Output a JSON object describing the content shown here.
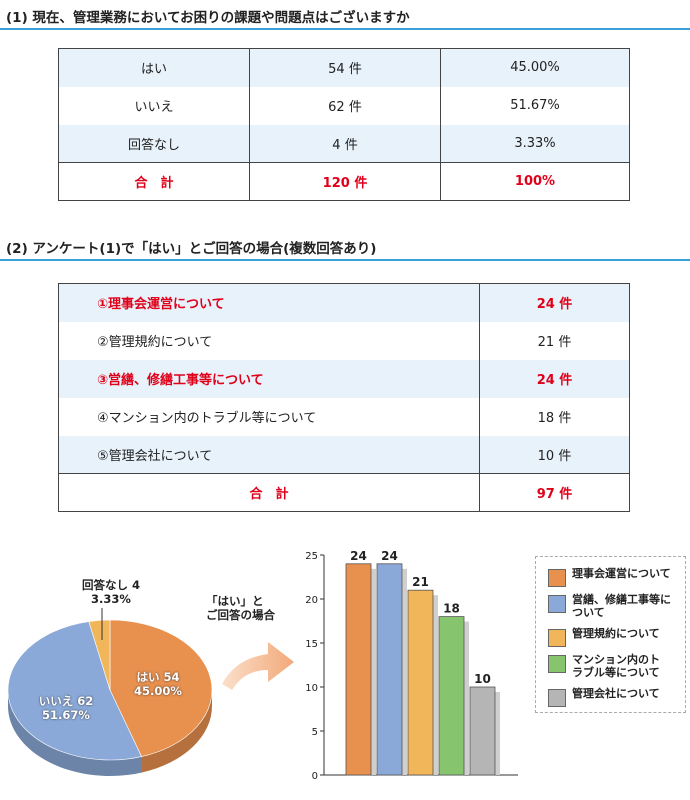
{
  "section1": {
    "title": "(1) 現在、管理業務においてお困りの課題や問題点はございますか",
    "rows": [
      {
        "label": "はい",
        "count": "54 件",
        "pct": "45.00%"
      },
      {
        "label": "いいえ",
        "count": "62 件",
        "pct": "51.67%"
      },
      {
        "label": "回答なし",
        "count": "4 件",
        "pct": "3.33%"
      }
    ],
    "total": {
      "label": "合　計",
      "count": "120 件",
      "pct": "100%"
    }
  },
  "section2": {
    "title": "(2) アンケート(1)で「はい」とご回答の場合(複数回答あり)",
    "rows": [
      {
        "label": "①理事会運営について",
        "count": "24 件",
        "highlight": true
      },
      {
        "label": "②管理規約について",
        "count": "21 件",
        "highlight": false
      },
      {
        "label": "③営繕、修繕工事等について",
        "count": "24 件",
        "highlight": true
      },
      {
        "label": "④マンション内のトラブル等について",
        "count": "18 件",
        "highlight": false
      },
      {
        "label": "⑤管理会社について",
        "count": "10 件",
        "highlight": false
      }
    ],
    "total": {
      "label": "合　計",
      "count": "97 件"
    }
  },
  "arrow_label": [
    "「はい」と",
    "ご回答の場合"
  ],
  "chart_data": [
    {
      "type": "pie",
      "slices": [
        {
          "name": "はい",
          "value": 54,
          "pct": "45.00%",
          "label1": "はい 54",
          "label2": "45.00%",
          "color": "#e8904e"
        },
        {
          "name": "いいえ",
          "value": 62,
          "pct": "51.67%",
          "label1": "いいえ 62",
          "label2": "51.67%",
          "color": "#8aa9d8"
        },
        {
          "name": "回答なし",
          "value": 4,
          "pct": "3.33%",
          "label1": "回答なし 4",
          "label2": "3.33%",
          "color": "#f2b65a"
        }
      ]
    },
    {
      "type": "bar",
      "categories": [
        "理事会運営について",
        "営繕、修繕工事等について",
        "管理規約について",
        "マンション内のトラブル等について",
        "管理会社について"
      ],
      "values": [
        24,
        24,
        21,
        18,
        10
      ],
      "colors": [
        "#e8904e",
        "#8aa9d8",
        "#f2b65a",
        "#86c46e",
        "#b5b5b5"
      ],
      "ylim": [
        0,
        25
      ],
      "yticks": [
        0,
        5,
        10,
        15,
        20,
        25
      ],
      "legend": [
        {
          "text": "理事会運営について",
          "color": "#e8904e"
        },
        {
          "text": "営繕、修繕工事等について",
          "color": "#8aa9d8"
        },
        {
          "text": "管理規約について",
          "color": "#f2b65a"
        },
        {
          "text": "マンション内のトラブル等について",
          "color": "#86c46e"
        },
        {
          "text": "管理会社について",
          "color": "#b5b5b5"
        }
      ],
      "legend_position": "right"
    }
  ]
}
